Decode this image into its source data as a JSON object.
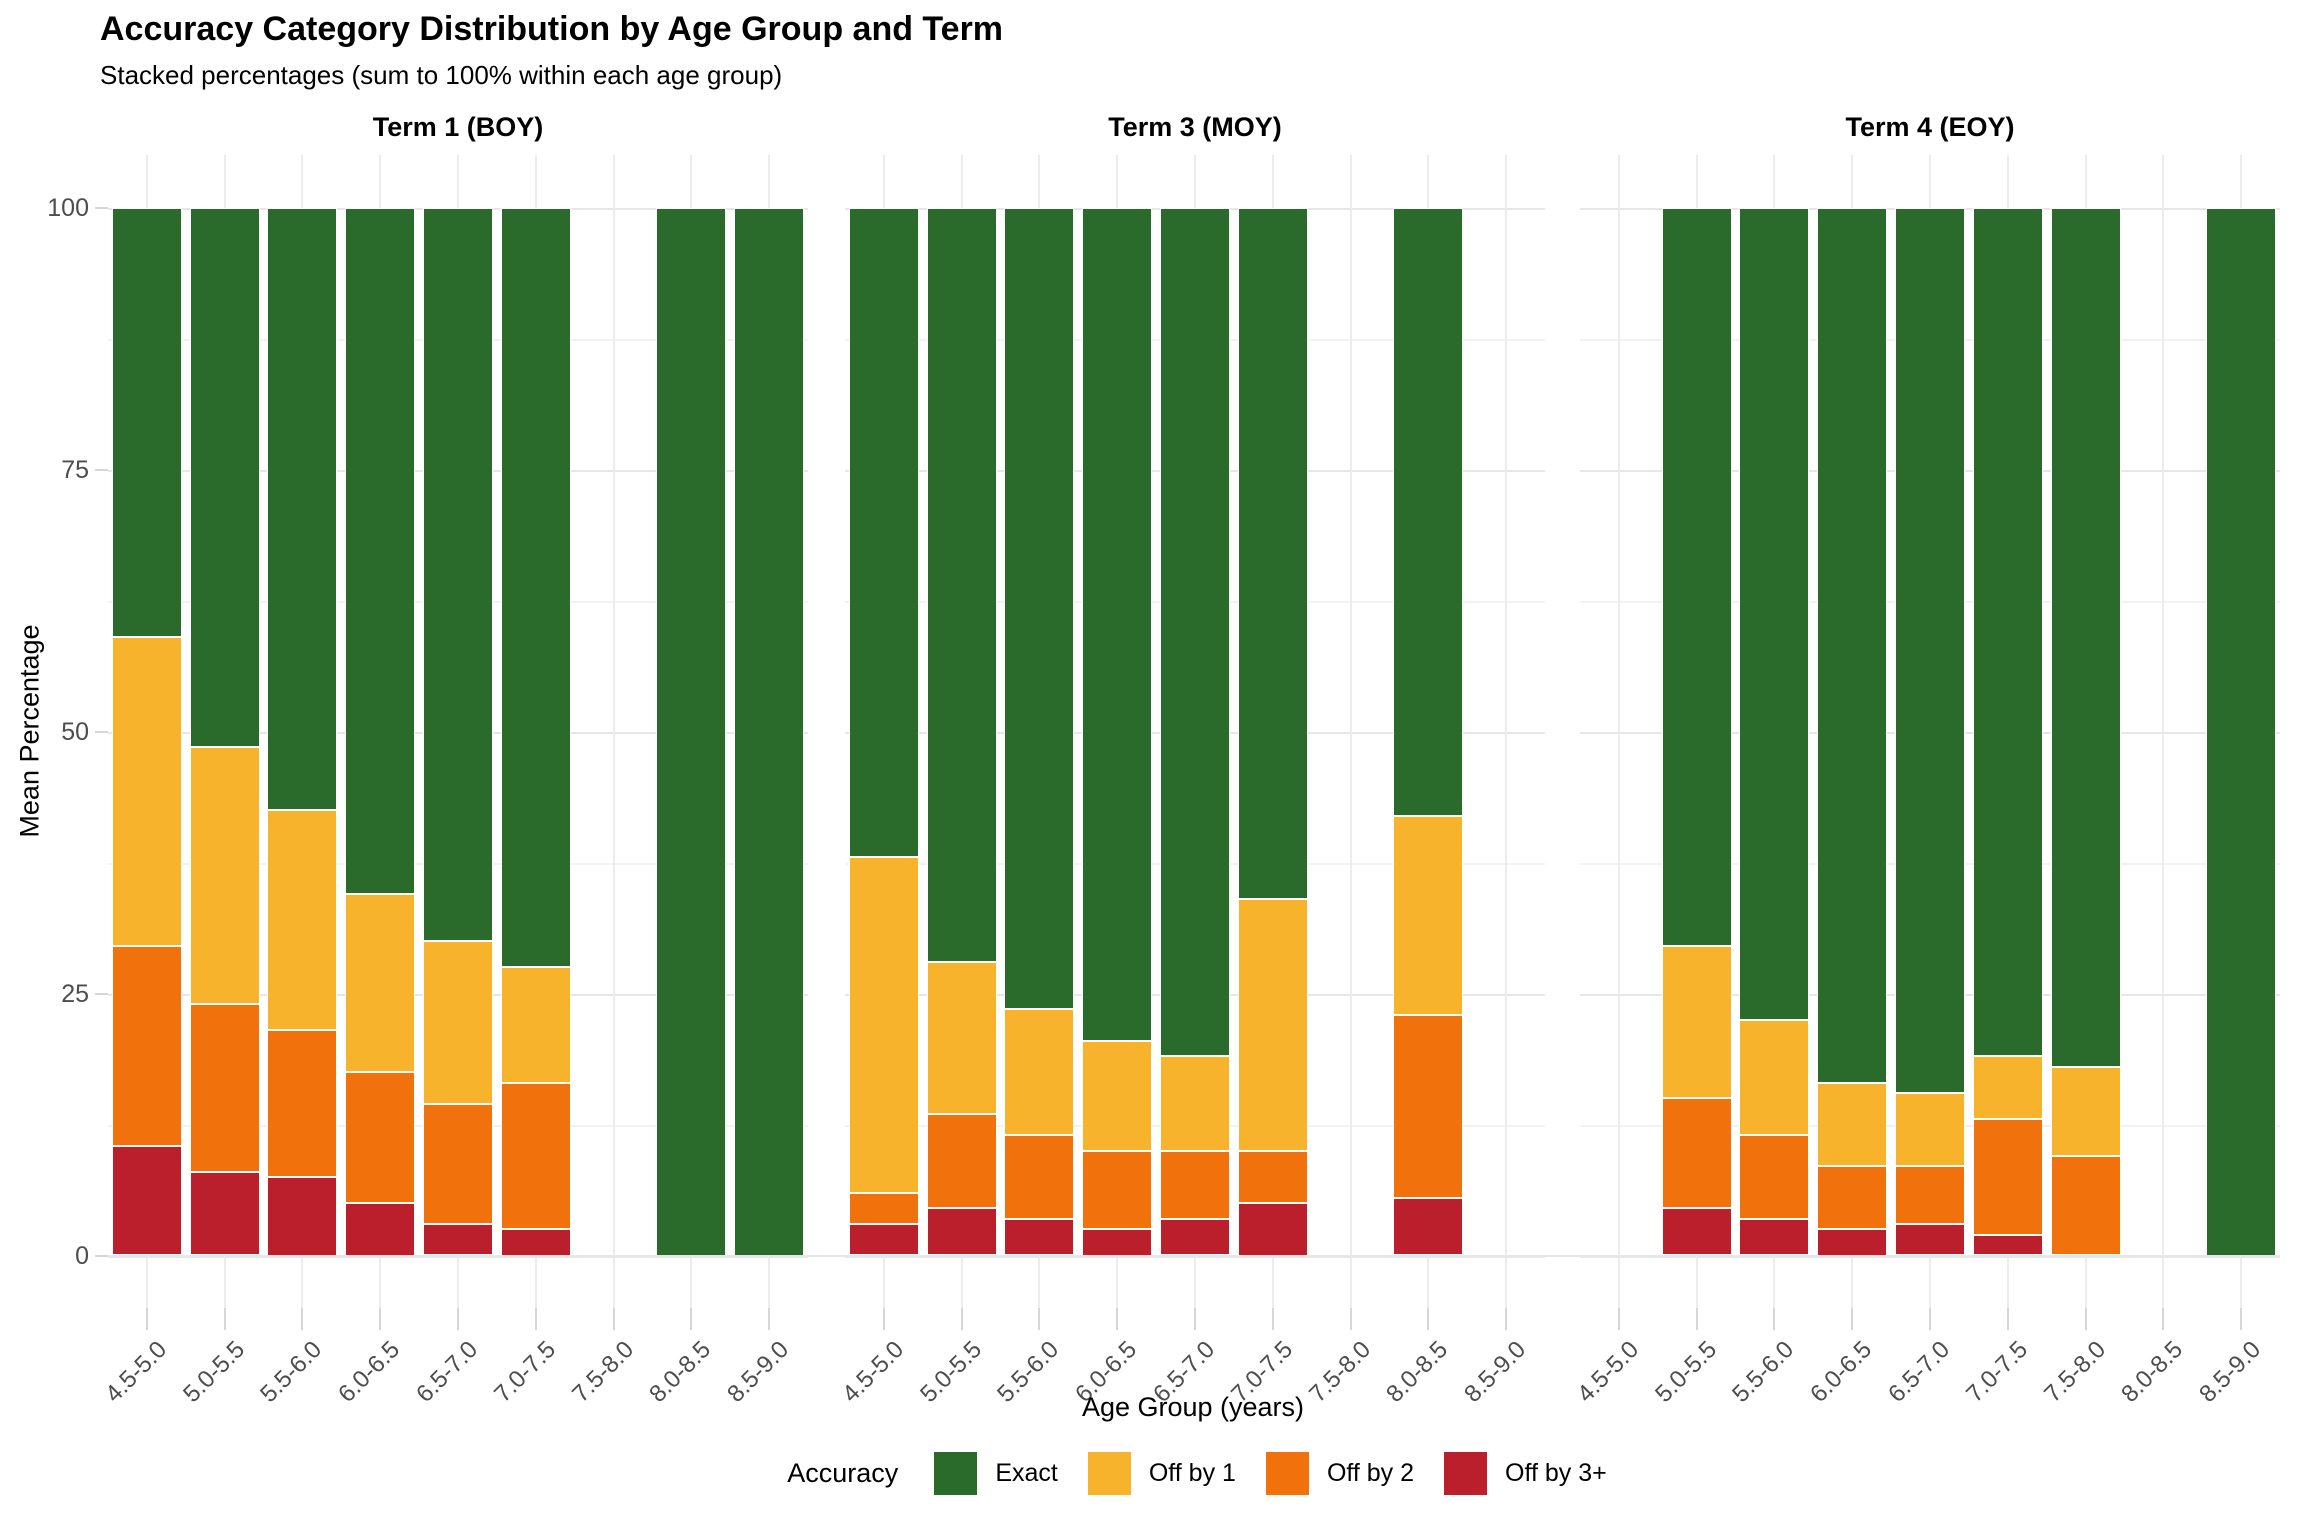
{
  "header": {
    "title": "Accuracy Category Distribution by Age Group and Term",
    "subtitle": "Stacked percentages (sum to 100% within each age group)"
  },
  "axes": {
    "y_title": "Mean Percentage",
    "x_title": "Age Group (years)",
    "y_ticks": [
      0,
      25,
      50,
      75,
      100
    ],
    "y_minor_ticks": [
      12.5,
      37.5,
      62.5,
      87.5
    ],
    "y_range": [
      0,
      100
    ],
    "x_categories": [
      "4.5-5.0",
      "5.0-5.5",
      "5.5-6.0",
      "6.0-6.5",
      "6.5-7.0",
      "7.0-7.5",
      "7.5-8.0",
      "8.0-8.5",
      "8.5-9.0"
    ]
  },
  "legend": {
    "title": "Accuracy",
    "position": "bottom",
    "items": [
      {
        "label": "Exact",
        "color": "#2A6B2B"
      },
      {
        "label": "Off by 1",
        "color": "#F7B32B"
      },
      {
        "label": "Off by 2",
        "color": "#F1720C"
      },
      {
        "label": "Off by 3+",
        "color": "#BB1F2C"
      }
    ]
  },
  "chart_data": {
    "type": "bar",
    "stacked": true,
    "units": "percent",
    "grid": true,
    "categories": [
      "4.5-5.0",
      "5.0-5.5",
      "5.5-6.0",
      "6.0-6.5",
      "6.5-7.0",
      "7.0-7.5",
      "7.5-8.0",
      "8.0-8.5",
      "8.5-9.0"
    ],
    "series_order_bottom_to_top": [
      "Off by 3+",
      "Off by 2",
      "Off by 1",
      "Exact"
    ],
    "facets": [
      {
        "title": "Term 1 (BOY)",
        "series": [
          {
            "name": "Off by 3+",
            "color": "#BB1F2C",
            "values": [
              10.5,
              8,
              7.5,
              5,
              3,
              2.5,
              null,
              0,
              0
            ]
          },
          {
            "name": "Off by 2",
            "color": "#F1720C",
            "values": [
              19,
              16,
              14,
              12.5,
              11.5,
              14,
              null,
              0,
              0
            ]
          },
          {
            "name": "Off by 1",
            "color": "#F7B32B",
            "values": [
              29.5,
              24.5,
              21,
              17,
              15.5,
              11,
              null,
              0,
              0
            ]
          },
          {
            "name": "Exact",
            "color": "#2A6B2B",
            "values": [
              41,
              51.5,
              57.5,
              65.5,
              70,
              72.5,
              null,
              100,
              100
            ]
          }
        ]
      },
      {
        "title": "Term 3 (MOY)",
        "series": [
          {
            "name": "Off by 3+",
            "color": "#BB1F2C",
            "values": [
              3,
              4.5,
              3.5,
              2.5,
              3.5,
              5,
              null,
              5.5,
              null
            ]
          },
          {
            "name": "Off by 2",
            "color": "#F1720C",
            "values": [
              3,
              9,
              8,
              7.5,
              6.5,
              5,
              null,
              17.5,
              null
            ]
          },
          {
            "name": "Off by 1",
            "color": "#F7B32B",
            "values": [
              32,
              14.5,
              12,
              10.5,
              9,
              24,
              null,
              19,
              null
            ]
          },
          {
            "name": "Exact",
            "color": "#2A6B2B",
            "values": [
              62,
              72,
              76.5,
              79.5,
              81,
              66,
              null,
              58,
              null
            ]
          }
        ]
      },
      {
        "title": "Term 4 (EOY)",
        "series": [
          {
            "name": "Off by 3+",
            "color": "#BB1F2C",
            "values": [
              null,
              4.5,
              3.5,
              2.5,
              3,
              2,
              0,
              null,
              0
            ]
          },
          {
            "name": "Off by 2",
            "color": "#F1720C",
            "values": [
              null,
              10.5,
              8,
              6,
              5.5,
              11,
              9.5,
              null,
              0
            ]
          },
          {
            "name": "Off by 1",
            "color": "#F7B32B",
            "values": [
              null,
              14.5,
              11,
              8,
              7,
              6,
              8.5,
              null,
              0
            ]
          },
          {
            "name": "Exact",
            "color": "#2A6B2B",
            "values": [
              null,
              70.5,
              77.5,
              83.5,
              84.5,
              81,
              82,
              null,
              100
            ]
          }
        ]
      }
    ]
  }
}
